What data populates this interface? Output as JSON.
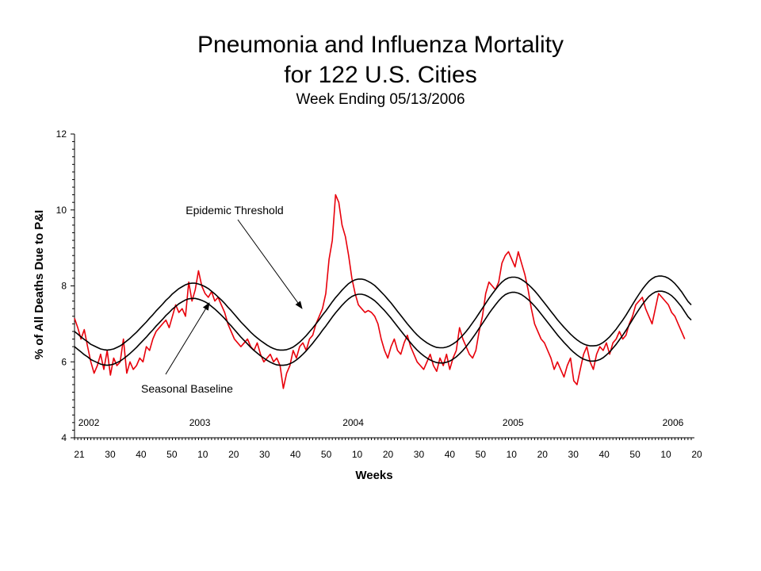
{
  "title": {
    "line1": "Pneumonia and Influenza Mortality",
    "line2": "for 122 U.S. Cities",
    "subtitle": "Week Ending 05/13/2006"
  },
  "colors": {
    "mortality": "#e8000b",
    "threshold": "#000000",
    "baseline": "#000000",
    "axis": "#000000"
  },
  "chart_data": {
    "type": "line",
    "xlabel": "Weeks",
    "ylabel": "% of All Deaths Due to P&I",
    "ylim": [
      4,
      12
    ],
    "y_ticks": [
      4,
      6,
      8,
      10,
      12
    ],
    "grid": false,
    "x_tick_labels": [
      "21",
      "30",
      "40",
      "50",
      "10",
      "20",
      "30",
      "40",
      "50",
      "10",
      "20",
      "30",
      "40",
      "50",
      "10",
      "20",
      "30",
      "40",
      "50",
      "10",
      "20"
    ],
    "year_labels": [
      {
        "label": "2002",
        "week_index": 1
      },
      {
        "label": "2003",
        "week_index": 35
      },
      {
        "label": "2004",
        "week_index": 82
      },
      {
        "label": "2005",
        "week_index": 131
      },
      {
        "label": "2006",
        "week_index": 180
      }
    ],
    "annotations": [
      {
        "text": "Epidemic Threshold",
        "target_series": "Epidemic Threshold",
        "target_week_index": 70
      },
      {
        "text": "Seasonal Baseline",
        "target_series": "Seasonal Baseline",
        "target_week_index": 40
      }
    ],
    "series": [
      {
        "name": "Epidemic Threshold",
        "values": [
          6.8,
          6.73,
          6.66,
          6.59,
          6.53,
          6.46,
          6.42,
          6.38,
          6.34,
          6.32,
          6.31,
          6.32,
          6.34,
          6.38,
          6.42,
          6.48,
          6.55,
          6.62,
          6.7,
          6.78,
          6.87,
          6.96,
          7.05,
          7.15,
          7.24,
          7.34,
          7.43,
          7.52,
          7.62,
          7.7,
          7.79,
          7.86,
          7.93,
          7.98,
          8.03,
          8.06,
          8.07,
          8.07,
          8.05,
          8.02,
          7.98,
          7.93,
          7.86,
          7.79,
          7.71,
          7.63,
          7.54,
          7.44,
          7.35,
          7.25,
          7.15,
          7.05,
          6.96,
          6.87,
          6.78,
          6.7,
          6.63,
          6.56,
          6.5,
          6.44,
          6.39,
          6.35,
          6.32,
          6.31,
          6.31,
          6.32,
          6.35,
          6.39,
          6.45,
          6.52,
          6.6,
          6.69,
          6.79,
          6.89,
          7.0,
          7.11,
          7.23,
          7.34,
          7.46,
          7.58,
          7.69,
          7.79,
          7.89,
          7.98,
          8.06,
          8.12,
          8.16,
          8.18,
          8.18,
          8.16,
          8.12,
          8.07,
          8.01,
          7.93,
          7.84,
          7.75,
          7.65,
          7.55,
          7.44,
          7.33,
          7.22,
          7.11,
          7.0,
          6.9,
          6.8,
          6.71,
          6.63,
          6.56,
          6.5,
          6.45,
          6.41,
          6.38,
          6.37,
          6.37,
          6.39,
          6.42,
          6.47,
          6.53,
          6.61,
          6.7,
          6.8,
          6.91,
          7.03,
          7.15,
          7.28,
          7.41,
          7.54,
          7.67,
          7.79,
          7.9,
          8.01,
          8.1,
          8.17,
          8.21,
          8.23,
          8.23,
          8.21,
          8.17,
          8.11,
          8.04,
          7.96,
          7.87,
          7.77,
          7.66,
          7.55,
          7.44,
          7.33,
          7.22,
          7.11,
          7.01,
          6.91,
          6.82,
          6.73,
          6.65,
          6.58,
          6.52,
          6.47,
          6.44,
          6.42,
          6.42,
          6.43,
          6.46,
          6.51,
          6.58,
          6.66,
          6.76,
          6.86,
          6.98,
          7.1,
          7.23,
          7.37,
          7.51,
          7.65,
          7.78,
          7.91,
          8.02,
          8.12,
          8.19,
          8.24,
          8.26,
          8.26,
          8.24,
          8.2,
          8.14,
          8.06,
          7.96,
          7.85,
          7.72,
          7.59,
          7.5
        ]
      },
      {
        "name": "Seasonal Baseline",
        "values": [
          6.4,
          6.33,
          6.26,
          6.19,
          6.13,
          6.06,
          6.02,
          5.98,
          5.94,
          5.92,
          5.91,
          5.92,
          5.94,
          5.98,
          6.02,
          6.08,
          6.15,
          6.22,
          6.3,
          6.38,
          6.47,
          6.56,
          6.65,
          6.75,
          6.84,
          6.94,
          7.03,
          7.12,
          7.22,
          7.3,
          7.39,
          7.46,
          7.53,
          7.58,
          7.63,
          7.66,
          7.67,
          7.67,
          7.65,
          7.62,
          7.58,
          7.53,
          7.46,
          7.39,
          7.31,
          7.23,
          7.14,
          7.04,
          6.95,
          6.85,
          6.75,
          6.65,
          6.56,
          6.47,
          6.38,
          6.3,
          6.23,
          6.16,
          6.1,
          6.04,
          5.99,
          5.95,
          5.92,
          5.91,
          5.91,
          5.92,
          5.95,
          5.99,
          6.05,
          6.12,
          6.2,
          6.29,
          6.39,
          6.49,
          6.6,
          6.71,
          6.83,
          6.94,
          7.06,
          7.18,
          7.29,
          7.39,
          7.49,
          7.58,
          7.66,
          7.72,
          7.76,
          7.78,
          7.78,
          7.76,
          7.72,
          7.67,
          7.61,
          7.53,
          7.44,
          7.35,
          7.25,
          7.15,
          7.04,
          6.93,
          6.82,
          6.71,
          6.6,
          6.5,
          6.4,
          6.31,
          6.23,
          6.16,
          6.1,
          6.05,
          6.01,
          5.98,
          5.97,
          5.97,
          5.99,
          6.02,
          6.07,
          6.13,
          6.21,
          6.3,
          6.4,
          6.51,
          6.63,
          6.75,
          6.88,
          7.01,
          7.14,
          7.27,
          7.39,
          7.5,
          7.61,
          7.7,
          7.77,
          7.81,
          7.83,
          7.83,
          7.81,
          7.77,
          7.71,
          7.64,
          7.56,
          7.47,
          7.37,
          7.26,
          7.15,
          7.04,
          6.93,
          6.82,
          6.71,
          6.61,
          6.51,
          6.42,
          6.33,
          6.25,
          6.18,
          6.12,
          6.07,
          6.04,
          6.02,
          6.02,
          6.03,
          6.06,
          6.11,
          6.18,
          6.26,
          6.36,
          6.46,
          6.58,
          6.7,
          6.83,
          6.97,
          7.11,
          7.25,
          7.38,
          7.51,
          7.62,
          7.72,
          7.79,
          7.84,
          7.86,
          7.86,
          7.84,
          7.8,
          7.74,
          7.66,
          7.56,
          7.45,
          7.32,
          7.19,
          7.1
        ]
      },
      {
        "name": "Mortality",
        "values": [
          7.15,
          6.9,
          6.6,
          6.85,
          6.4,
          6.0,
          5.7,
          5.9,
          6.2,
          5.8,
          6.3,
          5.65,
          6.1,
          5.9,
          6.0,
          6.6,
          5.7,
          6.0,
          5.8,
          5.9,
          6.1,
          6.0,
          6.4,
          6.3,
          6.6,
          6.8,
          6.9,
          7.0,
          7.1,
          6.9,
          7.2,
          7.5,
          7.3,
          7.4,
          7.2,
          8.1,
          7.6,
          7.9,
          8.4,
          8.0,
          7.8,
          7.7,
          7.85,
          7.6,
          7.7,
          7.5,
          7.3,
          7.0,
          6.8,
          6.6,
          6.5,
          6.4,
          6.5,
          6.6,
          6.4,
          6.3,
          6.5,
          6.2,
          6.0,
          6.1,
          6.2,
          6.0,
          6.1,
          5.9,
          5.3,
          5.7,
          5.9,
          6.3,
          6.1,
          6.4,
          6.5,
          6.3,
          6.6,
          6.7,
          7.0,
          7.2,
          7.4,
          7.8,
          8.7,
          9.2,
          10.4,
          10.2,
          9.6,
          9.3,
          8.8,
          8.2,
          7.8,
          7.5,
          7.4,
          7.3,
          7.35,
          7.3,
          7.2,
          7.0,
          6.6,
          6.3,
          6.1,
          6.4,
          6.6,
          6.3,
          6.2,
          6.5,
          6.7,
          6.4,
          6.2,
          6.0,
          5.9,
          5.8,
          6.0,
          6.2,
          5.9,
          5.75,
          6.1,
          5.9,
          6.2,
          5.8,
          6.1,
          6.3,
          6.9,
          6.6,
          6.4,
          6.2,
          6.1,
          6.3,
          6.8,
          7.2,
          7.8,
          8.1,
          8.0,
          7.9,
          8.1,
          8.6,
          8.8,
          8.9,
          8.7,
          8.5,
          8.9,
          8.6,
          8.3,
          7.9,
          7.4,
          7.0,
          6.8,
          6.6,
          6.5,
          6.3,
          6.1,
          5.8,
          6.0,
          5.8,
          5.6,
          5.9,
          6.1,
          5.5,
          5.4,
          5.8,
          6.2,
          6.4,
          6.0,
          5.8,
          6.2,
          6.4,
          6.3,
          6.5,
          6.2,
          6.5,
          6.6,
          6.8,
          6.6,
          6.7,
          7.0,
          7.2,
          7.5,
          7.6,
          7.7,
          7.4,
          7.2,
          7.0,
          7.4,
          7.8,
          7.7,
          7.6,
          7.5,
          7.3,
          7.2,
          7.0,
          6.8,
          6.6
        ]
      }
    ]
  }
}
